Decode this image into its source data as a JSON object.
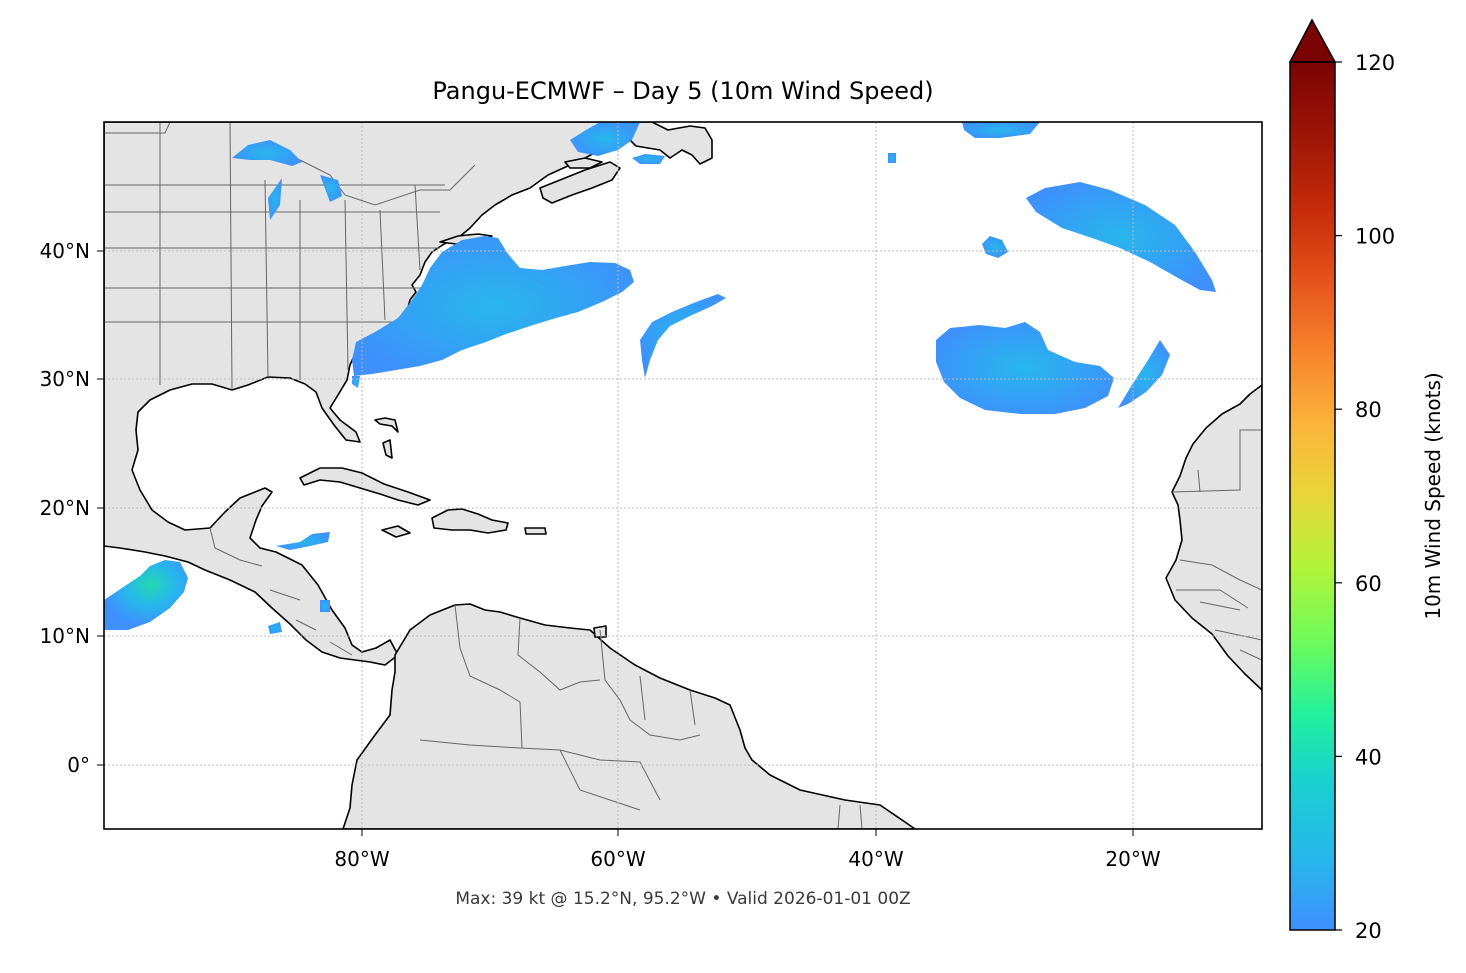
{
  "title": "Pangu-ECMWF – Day 5 (10m Wind Speed)",
  "footer": "Max: 39 kt @ 15.2°N, 95.2°W • Valid 2026-01-01 00Z",
  "map": {
    "lon_range": [
      -100,
      -10
    ],
    "lat_range": [
      -5,
      50
    ],
    "x_ticks": [
      {
        "lon": -80,
        "label": "80°W"
      },
      {
        "lon": -60,
        "label": "60°W"
      },
      {
        "lon": -40,
        "label": "40°W"
      },
      {
        "lon": -20,
        "label": "20°W"
      }
    ],
    "y_ticks": [
      {
        "lat": 0,
        "label": "0°"
      },
      {
        "lat": 10,
        "label": "10°N"
      },
      {
        "lat": 20,
        "label": "20°N"
      },
      {
        "lat": 30,
        "label": "30°N"
      },
      {
        "lat": 40,
        "label": "40°N"
      }
    ],
    "gridlines": true,
    "land_color": "#e4e4e4",
    "ocean_color": "#ffffff"
  },
  "wind_max": {
    "speed_kt": 39,
    "lat": 15.2,
    "lon": -95.2
  },
  "colorbar": {
    "label": "10m Wind Speed (knots)",
    "min": 20,
    "max": 120,
    "extend": "max",
    "ticks": [
      {
        "value": 20,
        "label": "20"
      },
      {
        "value": 40,
        "label": "40"
      },
      {
        "value": 60,
        "label": "60"
      },
      {
        "value": 80,
        "label": "80"
      },
      {
        "value": 100,
        "label": "100"
      },
      {
        "value": 120,
        "label": "120"
      }
    ],
    "colormap": "turbo",
    "colors": [
      "#3f8ffd",
      "#27b6ec",
      "#1ad0d0",
      "#22f19c",
      "#6cfb5c",
      "#b3f338",
      "#e8d53a",
      "#fbb53a",
      "#f7812b",
      "#e5521a",
      "#c52c09",
      "#9b1406",
      "#7a0403"
    ]
  }
}
